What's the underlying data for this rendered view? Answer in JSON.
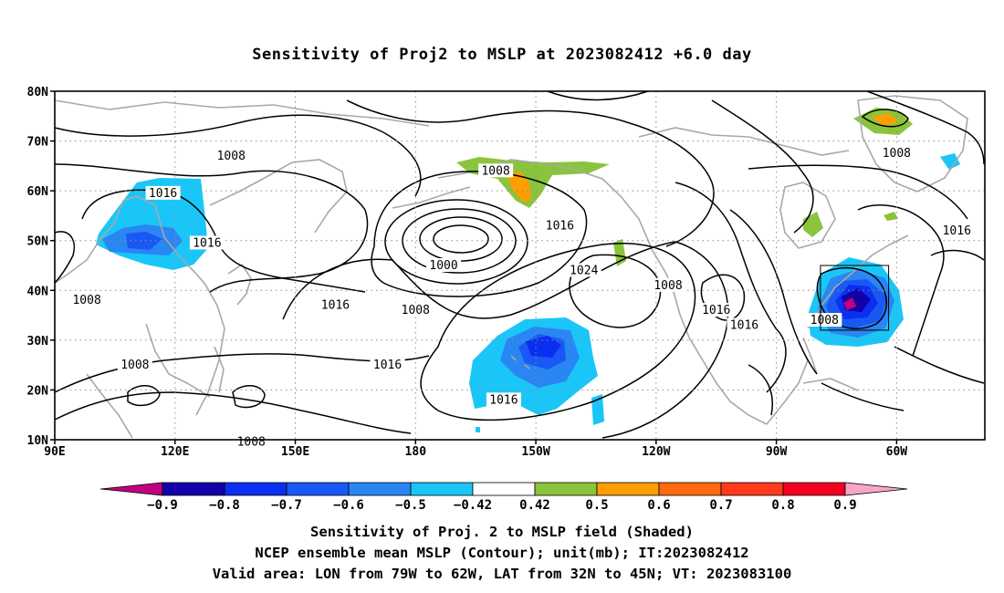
{
  "title": "Sensitivity of Proj2 to MSLP at 2023082412 +6.0 day",
  "map": {
    "lat_ticks": [
      "80N",
      "70N",
      "60N",
      "50N",
      "40N",
      "30N",
      "20N",
      "10N"
    ],
    "lon_ticks": [
      "90E",
      "120E",
      "150E",
      "180",
      "150W",
      "120W",
      "90W",
      "60W"
    ],
    "lat_range": [
      10,
      80
    ],
    "lon_range": [
      90,
      322
    ],
    "grid": "dotted",
    "valid_box": {
      "lon": [
        -79,
        -62
      ],
      "lat": [
        32,
        45
      ]
    },
    "colors": {
      "coast": "#a8a8a8",
      "contour": "#000000",
      "grid": "#8c8c8c"
    }
  },
  "contour_labels": [
    {
      "text": "1008",
      "lon": 134,
      "lat": 67
    },
    {
      "text": "1008",
      "lon": 200,
      "lat": 64
    },
    {
      "text": "1008",
      "lon": 300,
      "lat": 67.5
    },
    {
      "text": "1016",
      "lon": 117,
      "lat": 59.5
    },
    {
      "text": "1016",
      "lon": 128,
      "lat": 49.5
    },
    {
      "text": "1016",
      "lon": 216,
      "lat": 53
    },
    {
      "text": "1016",
      "lon": 315,
      "lat": 52
    },
    {
      "text": "1000",
      "lon": 187,
      "lat": 45
    },
    {
      "text": "1024",
      "lon": 222,
      "lat": 44
    },
    {
      "text": "1008",
      "lon": 243,
      "lat": 41
    },
    {
      "text": "1008",
      "lon": 98,
      "lat": 38
    },
    {
      "text": "1016",
      "lon": 160,
      "lat": 37
    },
    {
      "text": "1008",
      "lon": 180,
      "lat": 36
    },
    {
      "text": "1016",
      "lon": 255,
      "lat": 36
    },
    {
      "text": "1016",
      "lon": 262,
      "lat": 33
    },
    {
      "text": "1008",
      "lon": 282,
      "lat": 34
    },
    {
      "text": "1008",
      "lon": 110,
      "lat": 25
    },
    {
      "text": "1016",
      "lon": 173,
      "lat": 25
    },
    {
      "text": "1016",
      "lon": 202,
      "lat": 18
    },
    {
      "text": "1008",
      "lon": 139,
      "lat": 9.5
    }
  ],
  "colorbar": {
    "levels": [
      "-0.9",
      "-0.8",
      "-0.7",
      "-0.6",
      "-0.5",
      "-0.42",
      "0.42",
      "0.5",
      "0.6",
      "0.7",
      "0.8",
      "0.9"
    ],
    "colors": [
      "#c0007f",
      "#1200a8",
      "#0a2ff0",
      "#1a58f5",
      "#2a86f2",
      "#1ac6f8",
      "#ffffff",
      "#8ac43c",
      "#ff9e00",
      "#ff6a10",
      "#ff3a1a",
      "#f2001f",
      "#f8a6c8"
    ]
  },
  "captions": [
    "Sensitivity of Proj. 2 to MSLP field (Shaded)",
    "NCEP ensemble mean MSLP (Contour); unit(mb); IT:2023082412",
    "Valid area: LON from 79W to 62W, LAT from 32N to 45N; VT: 2023083100"
  ]
}
